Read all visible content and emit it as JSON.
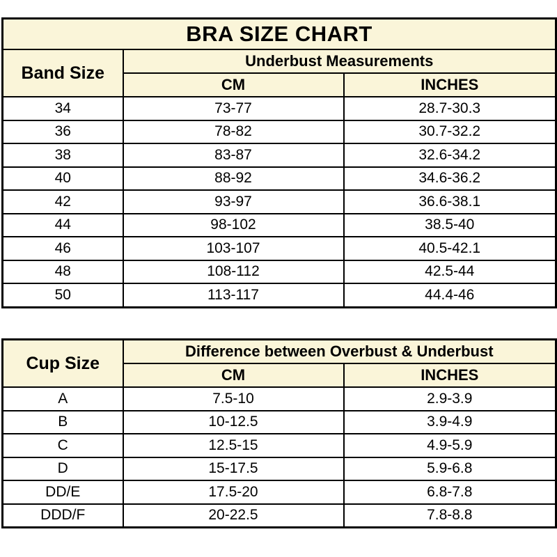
{
  "title": "BRA SIZE CHART",
  "colors": {
    "header_bg": "#FAF5D9",
    "row_bg": "#FFFFFF",
    "border": "#000000",
    "text": "#000000"
  },
  "band_table": {
    "row_header": "Band Size",
    "group_header": "Underbust Measurements",
    "col_headers": {
      "cm": "CM",
      "inches": "INCHES"
    },
    "rows": [
      {
        "band": "34",
        "cm": "73-77",
        "inches": "28.7-30.3"
      },
      {
        "band": "36",
        "cm": "78-82",
        "inches": "30.7-32.2"
      },
      {
        "band": "38",
        "cm": "83-87",
        "inches": "32.6-34.2"
      },
      {
        "band": "40",
        "cm": "88-92",
        "inches": "34.6-36.2"
      },
      {
        "band": "42",
        "cm": "93-97",
        "inches": "36.6-38.1"
      },
      {
        "band": "44",
        "cm": "98-102",
        "inches": "38.5-40"
      },
      {
        "band": "46",
        "cm": "103-107",
        "inches": "40.5-42.1"
      },
      {
        "band": "48",
        "cm": "108-112",
        "inches": "42.5-44"
      },
      {
        "band": "50",
        "cm": "113-117",
        "inches": "44.4-46"
      }
    ]
  },
  "cup_table": {
    "row_header": "Cup Size",
    "group_header": "Difference between Overbust & Underbust",
    "col_headers": {
      "cm": "CM",
      "inches": "INCHES"
    },
    "rows": [
      {
        "cup": "A",
        "cm": "7.5-10",
        "inches": "2.9-3.9"
      },
      {
        "cup": "B",
        "cm": "10-12.5",
        "inches": "3.9-4.9"
      },
      {
        "cup": "C",
        "cm": "12.5-15",
        "inches": "4.9-5.9"
      },
      {
        "cup": "D",
        "cm": "15-17.5",
        "inches": "5.9-6.8"
      },
      {
        "cup": "DD/E",
        "cm": "17.5-20",
        "inches": "6.8-7.8"
      },
      {
        "cup": "DDD/F",
        "cm": "20-22.5",
        "inches": "7.8-8.8"
      }
    ]
  }
}
